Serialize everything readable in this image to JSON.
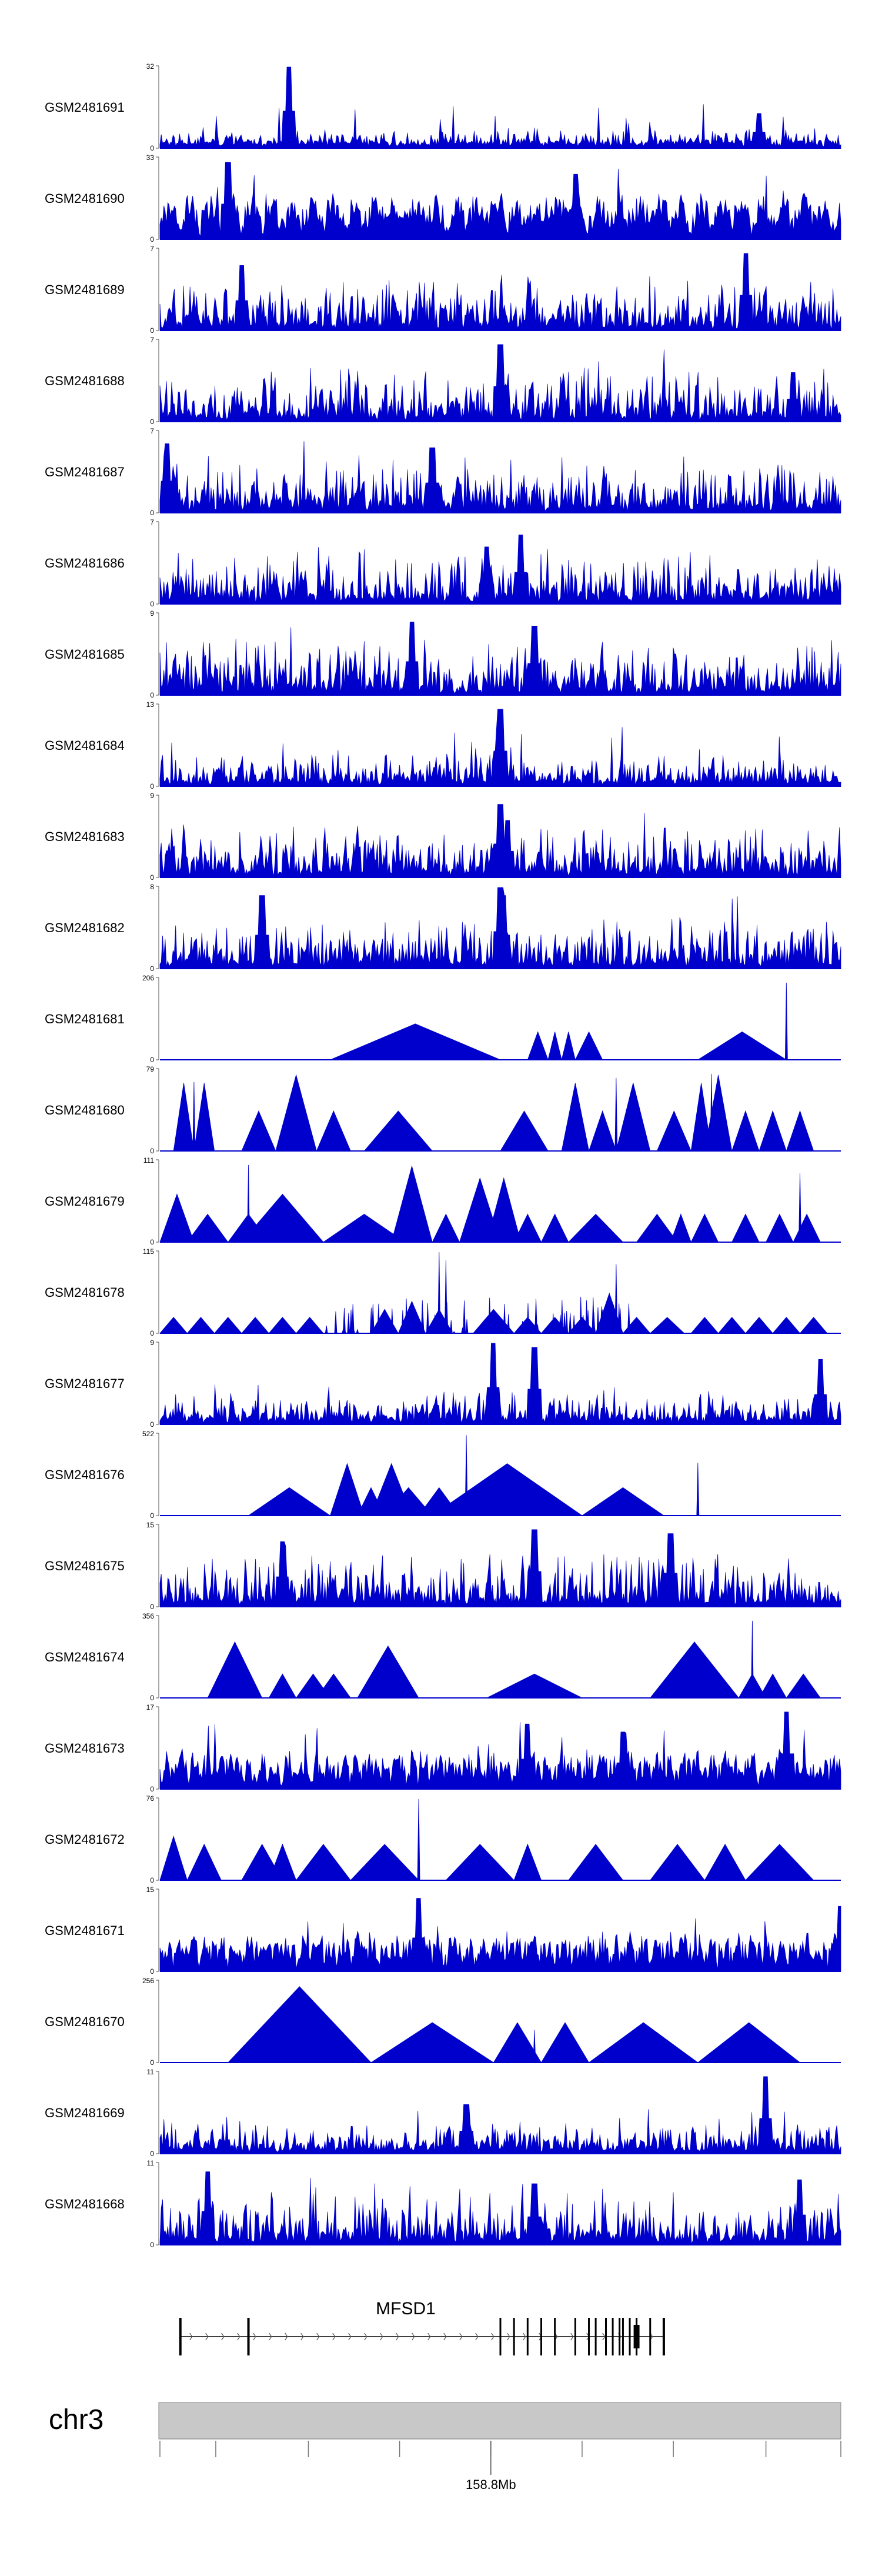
{
  "chart_data": {
    "type": "area",
    "title": "",
    "color": "#0000cc",
    "series": [
      {
        "name": "GSM2481691",
        "ylim": [
          0,
          32
        ],
        "ymax_label": "32",
        "ymin_label": "0",
        "peaks": [
          [
            0.19,
            1.0
          ],
          [
            0.88,
            0.42
          ]
        ],
        "pattern": "sparse"
      },
      {
        "name": "GSM2481690",
        "ylim": [
          0,
          33
        ],
        "ymax_label": "33",
        "ymin_label": "0",
        "peaks": [
          [
            0.1,
            0.95
          ],
          [
            0.61,
            0.8
          ]
        ],
        "pattern": "sawtooth"
      },
      {
        "name": "GSM2481689",
        "ylim": [
          0,
          7
        ],
        "ymax_label": "7",
        "ymin_label": "0",
        "peaks": [
          [
            0.86,
            0.95
          ],
          [
            0.12,
            0.8
          ]
        ],
        "pattern": "dense"
      },
      {
        "name": "GSM2481688",
        "ylim": [
          0,
          7
        ],
        "ymax_label": "7",
        "ymin_label": "0",
        "peaks": [
          [
            0.5,
            0.95
          ],
          [
            0.93,
            0.6
          ]
        ],
        "pattern": "dense"
      },
      {
        "name": "GSM2481687",
        "ylim": [
          0,
          7
        ],
        "ymax_label": "7",
        "ymin_label": "0",
        "peaks": [
          [
            0.01,
            0.85
          ],
          [
            0.4,
            0.8
          ]
        ],
        "pattern": "dense"
      },
      {
        "name": "GSM2481686",
        "ylim": [
          0,
          7
        ],
        "ymax_label": "7",
        "ymin_label": "0",
        "peaks": [
          [
            0.48,
            0.7
          ],
          [
            0.53,
            0.85
          ]
        ],
        "pattern": "dense"
      },
      {
        "name": "GSM2481685",
        "ylim": [
          0,
          9
        ],
        "ymax_label": "9",
        "ymin_label": "0",
        "peaks": [
          [
            0.37,
            0.9
          ],
          [
            0.55,
            0.85
          ]
        ],
        "pattern": "dense"
      },
      {
        "name": "GSM2481684",
        "ylim": [
          0,
          13
        ],
        "ymax_label": "13",
        "ymin_label": "0",
        "peaks": [
          [
            0.5,
            0.95
          ],
          [
            0.497,
            0.7
          ]
        ],
        "pattern": "low"
      },
      {
        "name": "GSM2481683",
        "ylim": [
          0,
          9
        ],
        "ymax_label": "9",
        "ymin_label": "0",
        "peaks": [
          [
            0.5,
            0.9
          ],
          [
            0.51,
            0.7
          ]
        ],
        "pattern": "dense"
      },
      {
        "name": "GSM2481682",
        "ylim": [
          0,
          8
        ],
        "ymax_label": "8",
        "ymin_label": "0",
        "peaks": [
          [
            0.5,
            1.0
          ],
          [
            0.505,
            0.9
          ],
          [
            0.15,
            0.9
          ]
        ],
        "pattern": "dense"
      },
      {
        "name": "GSM2481681",
        "ylim": [
          0,
          206
        ],
        "ymax_label": "206",
        "ymin_label": "0",
        "segments": [
          [
            0.25,
            0.5,
            0.45
          ],
          [
            0.5,
            0.54,
            0.0
          ],
          [
            0.54,
            0.57,
            0.35
          ],
          [
            0.57,
            0.59,
            0.35
          ],
          [
            0.59,
            0.61,
            0.35
          ],
          [
            0.61,
            0.65,
            0.35
          ],
          [
            0.65,
            0.79,
            0.0
          ],
          [
            0.79,
            0.92,
            0.35
          ]
        ],
        "spikes": [
          [
            0.92,
            0.95
          ]
        ]
      },
      {
        "name": "GSM2481680",
        "ylim": [
          0,
          79
        ],
        "ymax_label": "79",
        "ymin_label": "0",
        "segments": [
          [
            0.02,
            0.05,
            0.85
          ],
          [
            0.05,
            0.08,
            0.85
          ],
          [
            0.08,
            0.12,
            0.0
          ],
          [
            0.12,
            0.17,
            0.5
          ],
          [
            0.17,
            0.19,
            0.0
          ],
          [
            0.17,
            0.23,
            0.95
          ],
          [
            0.23,
            0.28,
            0.5
          ],
          [
            0.3,
            0.4,
            0.5
          ],
          [
            0.4,
            0.48,
            0.0
          ],
          [
            0.5,
            0.57,
            0.5
          ],
          [
            0.59,
            0.63,
            0.85
          ],
          [
            0.63,
            0.67,
            0.5
          ],
          [
            0.67,
            0.72,
            0.85
          ],
          [
            0.73,
            0.78,
            0.5
          ],
          [
            0.78,
            0.81,
            0.85
          ],
          [
            0.8,
            0.84,
            0.95
          ],
          [
            0.84,
            0.88,
            0.5
          ],
          [
            0.88,
            0.92,
            0.5
          ],
          [
            0.92,
            0.96,
            0.5
          ]
        ],
        "spikes": [
          [
            0.05,
            0.85
          ],
          [
            0.67,
            0.9
          ],
          [
            0.81,
            0.95
          ]
        ]
      },
      {
        "name": "GSM2481679",
        "ylim": [
          0,
          111
        ],
        "ymax_label": "111",
        "ymin_label": "0",
        "segments": [
          [
            0.0,
            0.05,
            0.6
          ],
          [
            0.05,
            0.09,
            0.0
          ],
          [
            0.04,
            0.1,
            0.35
          ],
          [
            0.1,
            0.14,
            0.0
          ],
          [
            0.1,
            0.16,
            0.35
          ],
          [
            0.12,
            0.24,
            0.6
          ],
          [
            0.24,
            0.36,
            0.35
          ],
          [
            0.34,
            0.4,
            0.95
          ],
          [
            0.4,
            0.44,
            0.35
          ],
          [
            0.44,
            0.5,
            0.8
          ],
          [
            0.48,
            0.53,
            0.8
          ],
          [
            0.52,
            0.56,
            0.35
          ],
          [
            0.56,
            0.6,
            0.35
          ],
          [
            0.6,
            0.68,
            0.35
          ],
          [
            0.7,
            0.76,
            0.35
          ],
          [
            0.75,
            0.78,
            0.35
          ],
          [
            0.78,
            0.82,
            0.35
          ],
          [
            0.84,
            0.88,
            0.35
          ],
          [
            0.89,
            0.93,
            0.35
          ],
          [
            0.93,
            0.97,
            0.35
          ]
        ],
        "spikes": [
          [
            0.13,
            0.95
          ],
          [
            0.94,
            0.85
          ]
        ]
      },
      {
        "name": "GSM2481678",
        "ylim": [
          0,
          115
        ],
        "ymax_label": "115",
        "ymin_label": "0",
        "segments": [
          [
            0.0,
            0.04,
            0.2
          ],
          [
            0.04,
            0.08,
            0.2
          ],
          [
            0.08,
            0.12,
            0.2
          ],
          [
            0.12,
            0.16,
            0.2
          ],
          [
            0.16,
            0.2,
            0.2
          ],
          [
            0.2,
            0.24,
            0.2
          ],
          [
            0.31,
            0.35,
            0.3
          ],
          [
            0.35,
            0.39,
            0.4
          ],
          [
            0.39,
            0.43,
            0.3
          ],
          [
            0.46,
            0.52,
            0.3
          ],
          [
            0.52,
            0.56,
            0.2
          ],
          [
            0.56,
            0.6,
            0.2
          ],
          [
            0.6,
            0.64,
            0.2
          ],
          [
            0.64,
            0.68,
            0.5
          ],
          [
            0.68,
            0.72,
            0.2
          ],
          [
            0.72,
            0.77,
            0.2
          ],
          [
            0.78,
            0.82,
            0.2
          ],
          [
            0.82,
            0.86,
            0.2
          ],
          [
            0.86,
            0.9,
            0.2
          ],
          [
            0.9,
            0.94,
            0.2
          ],
          [
            0.94,
            0.98,
            0.2
          ]
        ],
        "spikes": [
          [
            0.41,
            1.0
          ],
          [
            0.42,
            0.9
          ],
          [
            0.67,
            0.85
          ]
        ],
        "extra": "dense"
      },
      {
        "name": "GSM2481677",
        "ylim": [
          0,
          9
        ],
        "ymax_label": "9",
        "ymin_label": "0",
        "peaks": [
          [
            0.49,
            1.0
          ],
          [
            0.55,
            0.95
          ],
          [
            0.97,
            0.8
          ]
        ],
        "pattern": "low"
      },
      {
        "name": "GSM2481676",
        "ylim": [
          0,
          522
        ],
        "ymax_label": "522",
        "ymin_label": "0",
        "segments": [
          [
            0.13,
            0.25,
            0.35
          ],
          [
            0.25,
            0.29,
            0.0
          ],
          [
            0.25,
            0.3,
            0.65
          ],
          [
            0.29,
            0.33,
            0.35
          ],
          [
            0.31,
            0.37,
            0.65
          ],
          [
            0.33,
            0.4,
            0.35
          ],
          [
            0.38,
            0.44,
            0.35
          ],
          [
            0.4,
            0.62,
            0.65
          ],
          [
            0.62,
            0.74,
            0.35
          ],
          [
            0.74,
            0.89,
            0.0
          ]
        ],
        "spikes": [
          [
            0.45,
            0.99
          ],
          [
            0.79,
            0.65
          ]
        ]
      },
      {
        "name": "GSM2481675",
        "ylim": [
          0,
          15
        ],
        "ymax_label": "15",
        "ymin_label": "0",
        "peaks": [
          [
            0.55,
            0.95
          ],
          [
            0.18,
            0.8
          ],
          [
            0.75,
            0.9
          ]
        ],
        "pattern": "dense"
      },
      {
        "name": "GSM2481674",
        "ylim": [
          0,
          356
        ],
        "ymax_label": "356",
        "ymin_label": "0",
        "segments": [
          [
            0.07,
            0.15,
            0.7
          ],
          [
            0.15,
            0.2,
            0.0
          ],
          [
            0.16,
            0.2,
            0.3
          ],
          [
            0.2,
            0.25,
            0.3
          ],
          [
            0.23,
            0.28,
            0.3
          ],
          [
            0.29,
            0.38,
            0.65
          ],
          [
            0.38,
            0.48,
            0.0
          ],
          [
            0.48,
            0.62,
            0.3
          ],
          [
            0.62,
            0.66,
            0.0
          ],
          [
            0.72,
            0.85,
            0.7
          ],
          [
            0.85,
            0.89,
            0.3
          ],
          [
            0.88,
            0.92,
            0.3
          ],
          [
            0.92,
            0.97,
            0.3
          ]
        ],
        "spikes": [
          [
            0.87,
            0.95
          ]
        ]
      },
      {
        "name": "GSM2481673",
        "ylim": [
          0,
          17
        ],
        "ymax_label": "17",
        "ymin_label": "0",
        "peaks": [
          [
            0.92,
            0.95
          ],
          [
            0.54,
            0.8
          ],
          [
            0.68,
            0.7
          ]
        ],
        "pattern": "sawtooth-dense"
      },
      {
        "name": "GSM2481672",
        "ylim": [
          0,
          76
        ],
        "ymax_label": "76",
        "ymin_label": "0",
        "segments": [
          [
            0.0,
            0.04,
            0.55
          ],
          [
            0.04,
            0.09,
            0.45
          ],
          [
            0.09,
            0.13,
            0.0
          ],
          [
            0.12,
            0.18,
            0.45
          ],
          [
            0.18,
            0.22,
            0.0
          ],
          [
            0.16,
            0.2,
            0.45
          ],
          [
            0.2,
            0.28,
            0.45
          ],
          [
            0.28,
            0.38,
            0.45
          ],
          [
            0.38,
            0.44,
            0.0
          ],
          [
            0.42,
            0.52,
            0.45
          ],
          [
            0.52,
            0.56,
            0.45
          ],
          [
            0.56,
            0.64,
            0.0
          ],
          [
            0.6,
            0.68,
            0.45
          ],
          [
            0.68,
            0.74,
            0.0
          ],
          [
            0.72,
            0.8,
            0.45
          ],
          [
            0.8,
            0.86,
            0.45
          ],
          [
            0.86,
            0.96,
            0.45
          ]
        ],
        "spikes": [
          [
            0.38,
            1.0
          ]
        ]
      },
      {
        "name": "GSM2481671",
        "ylim": [
          0,
          15
        ],
        "ymax_label": "15",
        "ymin_label": "0",
        "peaks": [
          [
            0.38,
            0.9
          ],
          [
            1.0,
            0.8
          ]
        ],
        "pattern": "sawtooth-dense"
      },
      {
        "name": "GSM2481670",
        "ylim": [
          0,
          256
        ],
        "ymax_label": "256",
        "ymin_label": "0",
        "segments": [
          [
            0.1,
            0.31,
            0.95
          ],
          [
            0.31,
            0.49,
            0.5
          ],
          [
            0.49,
            0.56,
            0.5
          ],
          [
            0.56,
            0.63,
            0.5
          ],
          [
            0.63,
            0.79,
            0.5
          ],
          [
            0.79,
            0.94,
            0.5
          ]
        ],
        "spikes": [
          [
            0.55,
            0.4
          ]
        ]
      },
      {
        "name": "GSM2481669",
        "ylim": [
          0,
          11
        ],
        "ymax_label": "11",
        "ymin_label": "0",
        "peaks": [
          [
            0.89,
            0.95
          ],
          [
            0.45,
            0.6
          ]
        ],
        "pattern": "low"
      },
      {
        "name": "GSM2481668",
        "ylim": [
          0,
          11
        ],
        "ymax_label": "11",
        "ymin_label": "0",
        "peaks": [
          [
            0.07,
            0.9
          ],
          [
            0.94,
            0.8
          ],
          [
            0.55,
            0.75
          ]
        ],
        "pattern": "dense"
      }
    ],
    "gene": {
      "name": "MFSD1",
      "exons": [
        0.03,
        0.13,
        0.5,
        0.52,
        0.54,
        0.56,
        0.58,
        0.61,
        0.63,
        0.64,
        0.655,
        0.665,
        0.675,
        0.68,
        0.69,
        0.7,
        0.72,
        0.74
      ]
    },
    "chromosome": {
      "name": "chr3",
      "tick_positions": [
        0.0,
        0.082,
        0.218,
        0.352,
        0.486,
        0.62,
        0.754,
        0.89,
        1.0
      ],
      "major_tick": 0.486,
      "major_label": "158.8Mb"
    }
  }
}
